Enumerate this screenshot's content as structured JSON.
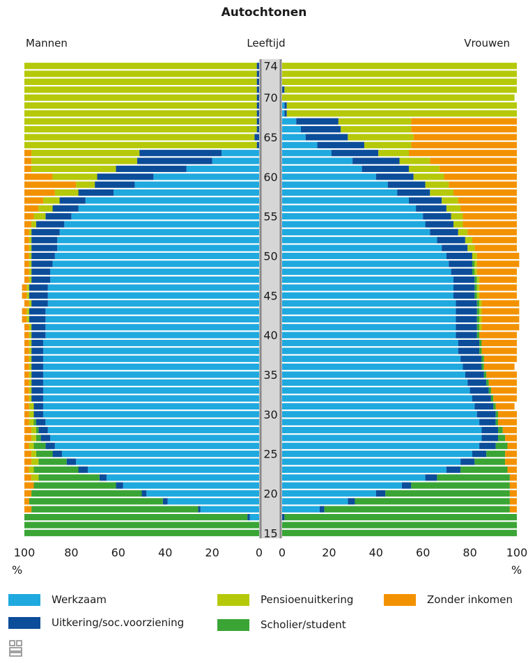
{
  "chart_data": {
    "type": "bar",
    "title": "Autochtonen",
    "left_label": "Mannen",
    "center_label": "Leeftijd",
    "right_label": "Vrouwen",
    "percent_label_left": "%",
    "percent_label_right": "%",
    "x_ticks_left": [
      "100",
      "80",
      "60",
      "40",
      "20",
      "0"
    ],
    "x_ticks_right": [
      "0",
      "20",
      "40",
      "60",
      "80",
      "100"
    ],
    "age_tick_labels": [
      "15",
      "20",
      "25",
      "30",
      "35",
      "40",
      "45",
      "50",
      "55",
      "60",
      "65",
      "70",
      "74"
    ],
    "xlim": [
      0,
      100
    ],
    "age_range": [
      15,
      74
    ],
    "categories_order": [
      "werkzaam",
      "uitkering",
      "scholier",
      "pensioen",
      "zonder"
    ],
    "colors": {
      "werkzaam": "#1fa9df",
      "uitkering": "#0c4d9a",
      "pensioen": "#b5c90a",
      "scholier": "#3aa535",
      "zonder": "#f39200",
      "axis_band": "#d6d6d6",
      "axis_line": "#888888"
    },
    "legend": [
      {
        "key": "werkzaam",
        "label": "Werkzaam"
      },
      {
        "key": "uitkering",
        "label": "Uitkering/soc.voorziening"
      },
      {
        "key": "pensioen",
        "label": "Pensioenuitkering"
      },
      {
        "key": "scholier",
        "label": "Scholier/student"
      },
      {
        "key": "zonder",
        "label": "Zonder inkomen"
      }
    ],
    "mannen": {
      "ages": [
        15,
        16,
        17,
        18,
        19,
        20,
        21,
        22,
        23,
        24,
        25,
        26,
        27,
        28,
        29,
        30,
        31,
        32,
        33,
        34,
        35,
        36,
        37,
        38,
        39,
        40,
        41,
        42,
        43,
        44,
        45,
        46,
        47,
        48,
        49,
        50,
        51,
        52,
        53,
        54,
        55,
        56,
        57,
        58,
        59,
        60,
        61,
        62,
        63,
        64,
        65,
        66,
        67,
        68,
        69,
        70,
        71,
        72,
        73,
        74
      ],
      "werkzaam": [
        0,
        0,
        4,
        25,
        39,
        48,
        58,
        65,
        73,
        78,
        84,
        87,
        89,
        90,
        91,
        92,
        92,
        92,
        92,
        92,
        92,
        92,
        92,
        92,
        92,
        91,
        91,
        91,
        91,
        90,
        90,
        90,
        89,
        89,
        88,
        87,
        86,
        86,
        85,
        83,
        80,
        77,
        74,
        62,
        53,
        45,
        31,
        20,
        16,
        0,
        0,
        0,
        0,
        0,
        0,
        0,
        0,
        0,
        0,
        0
      ],
      "uitkering": [
        0,
        0,
        1,
        1,
        2,
        2,
        3,
        3,
        4,
        4,
        4,
        4,
        4,
        4,
        4,
        4,
        4,
        5,
        5,
        5,
        5,
        5,
        5,
        5,
        5,
        6,
        6,
        7,
        7,
        7,
        8,
        8,
        8,
        8,
        9,
        10,
        11,
        11,
        12,
        12,
        11,
        11,
        11,
        15,
        17,
        24,
        30,
        32,
        35,
        1,
        2,
        1,
        1,
        1,
        1,
        1,
        1,
        1,
        1,
        1
      ],
      "scholier": [
        100,
        100,
        95,
        71,
        57,
        47,
        35,
        26,
        19,
        12,
        7,
        5,
        2,
        1,
        1,
        0,
        0,
        0,
        0,
        0,
        0,
        0,
        0,
        0,
        0,
        0,
        0,
        0,
        0,
        0,
        0,
        0,
        0,
        0,
        0,
        0,
        0,
        0,
        0,
        0,
        0,
        0,
        0,
        0,
        0,
        0,
        0,
        0,
        0,
        0,
        0,
        0,
        0,
        0,
        0,
        0,
        0,
        0,
        0,
        0
      ],
      "pensioen": [
        0,
        0,
        0,
        0,
        0,
        0,
        0,
        3,
        2,
        3,
        2,
        2,
        2,
        2,
        2,
        2,
        2,
        1,
        1,
        1,
        1,
        1,
        1,
        1,
        1,
        1,
        1,
        1,
        1,
        1,
        1,
        1,
        1,
        1,
        1,
        1,
        1,
        1,
        1,
        2,
        5,
        6,
        7,
        10,
        8,
        19,
        36,
        45,
        46,
        99,
        98,
        99,
        99,
        99,
        99,
        99,
        99,
        99,
        99,
        99
      ],
      "zonder": [
        0,
        0,
        0,
        3,
        2,
        3,
        4,
        3,
        2,
        3,
        3,
        2,
        3,
        3,
        2,
        2,
        2,
        2,
        2,
        2,
        2,
        2,
        2,
        2,
        2,
        2,
        2,
        2,
        2,
        2,
        2,
        2,
        2,
        2,
        2,
        2,
        2,
        2,
        2,
        3,
        4,
        6,
        8,
        13,
        22,
        12,
        3,
        3,
        3,
        0,
        0,
        0,
        0,
        0,
        0,
        0,
        0,
        0,
        0,
        0
      ]
    },
    "vrouwen": {
      "ages": [
        15,
        16,
        17,
        18,
        19,
        20,
        21,
        22,
        23,
        24,
        25,
        26,
        27,
        28,
        29,
        30,
        31,
        32,
        33,
        34,
        35,
        36,
        37,
        38,
        39,
        40,
        41,
        42,
        43,
        44,
        45,
        46,
        47,
        48,
        49,
        50,
        51,
        52,
        53,
        54,
        55,
        56,
        57,
        58,
        59,
        60,
        61,
        62,
        63,
        64,
        65,
        66,
        67,
        68,
        69,
        70,
        71,
        72,
        73,
        74
      ],
      "werkzaam": [
        0,
        0,
        0,
        16,
        28,
        40,
        51,
        61,
        70,
        76,
        81,
        84,
        85,
        85,
        84,
        83,
        82,
        81,
        80,
        79,
        78,
        77,
        76,
        75,
        75,
        74,
        74,
        74,
        74,
        74,
        73,
        73,
        73,
        72,
        71,
        70,
        68,
        66,
        63,
        61,
        60,
        57,
        54,
        49,
        45,
        40,
        34,
        30,
        21,
        15,
        10,
        8,
        6,
        1,
        1,
        0,
        0,
        0,
        0,
        0
      ],
      "uitkering": [
        0,
        0,
        1,
        2,
        3,
        4,
        4,
        5,
        6,
        6,
        6,
        7,
        7,
        7,
        7,
        8,
        8,
        8,
        8,
        8,
        8,
        8,
        9,
        9,
        9,
        9,
        9,
        9,
        9,
        9,
        9,
        9,
        9,
        9,
        10,
        11,
        11,
        12,
        12,
        12,
        12,
        13,
        14,
        14,
        16,
        16,
        20,
        20,
        20,
        20,
        18,
        17,
        18,
        1,
        1,
        0,
        1,
        0,
        0,
        0
      ],
      "scholier": [
        100,
        100,
        99,
        79,
        66,
        53,
        42,
        31,
        20,
        13,
        8,
        5,
        3,
        2,
        1,
        1,
        1,
        1,
        1,
        1,
        1,
        1,
        1,
        1,
        1,
        1,
        1,
        1,
        1,
        1,
        1,
        1,
        1,
        1,
        1,
        0,
        0,
        0,
        0,
        0,
        0,
        0,
        0,
        0,
        0,
        0,
        0,
        0,
        0,
        0,
        0,
        0,
        0,
        0,
        0,
        0,
        0,
        0,
        0,
        0
      ],
      "pensioen": [
        0,
        0,
        0,
        0,
        0,
        0,
        0,
        0,
        0,
        0,
        0,
        0,
        0,
        0,
        0,
        0,
        0,
        0,
        0,
        0,
        0,
        0,
        0,
        0,
        0,
        0,
        1,
        1,
        1,
        1,
        1,
        1,
        1,
        1,
        1,
        2,
        3,
        3,
        4,
        4,
        5,
        6,
        7,
        10,
        10,
        13,
        13,
        13,
        13,
        20,
        28,
        30,
        31,
        98,
        98,
        99,
        99,
        100,
        100,
        100
      ],
      "zonder": [
        0,
        0,
        0,
        3,
        3,
        3,
        3,
        3,
        4,
        5,
        5,
        4,
        5,
        6,
        8,
        8,
        8,
        10,
        11,
        12,
        13,
        13,
        14,
        15,
        15,
        16,
        16,
        16,
        16,
        16,
        16,
        16,
        16,
        17,
        18,
        18,
        18,
        19,
        21,
        23,
        23,
        24,
        25,
        27,
        29,
        31,
        33,
        37,
        46,
        45,
        44,
        45,
        45,
        0,
        0,
        0,
        0,
        0,
        0,
        0
      ]
    }
  }
}
